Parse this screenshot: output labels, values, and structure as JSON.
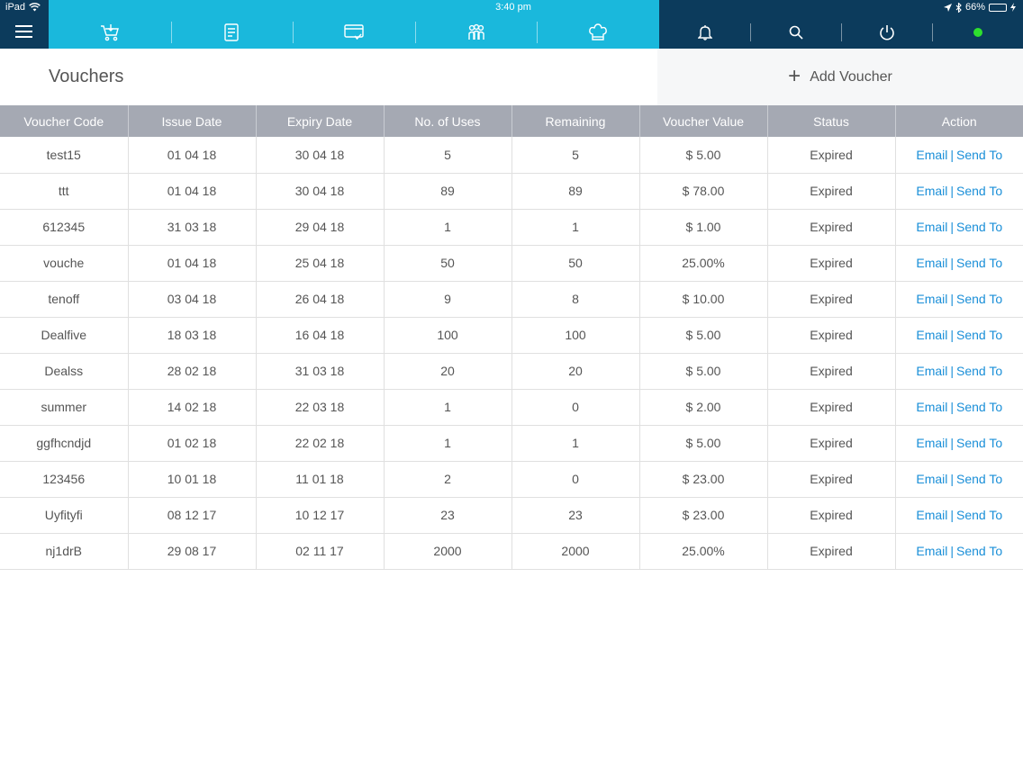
{
  "status_bar": {
    "device": "iPad",
    "time": "3:40 pm",
    "battery": "66%",
    "battery_level": 0.66
  },
  "nav": {
    "icons": [
      "cart-icon",
      "orders-icon",
      "payments-icon",
      "customers-icon",
      "chef-hat-icon"
    ],
    "right_icons": [
      "bell-icon",
      "search-icon",
      "power-icon",
      "online-status-icon"
    ],
    "online_color": "#2ee02e"
  },
  "header": {
    "title": "Vouchers",
    "add_label": "Add Voucher"
  },
  "table": {
    "columns": [
      "Voucher Code",
      "Issue Date",
      "Expiry Date",
      "No. of Uses",
      "Remaining",
      "Voucher Value",
      "Status",
      "Action"
    ],
    "action_email": "Email",
    "action_sep": "|",
    "action_send": "Send To",
    "rows": [
      [
        "test15",
        "01 04 18",
        "30 04 18",
        "5",
        "5",
        "$ 5.00",
        "Expired"
      ],
      [
        "ttt",
        "01 04 18",
        "30 04 18",
        "89",
        "89",
        "$ 78.00",
        "Expired"
      ],
      [
        "612345",
        "31 03 18",
        "29 04 18",
        "1",
        "1",
        "$ 1.00",
        "Expired"
      ],
      [
        "vouche",
        "01 04 18",
        "25 04 18",
        "50",
        "50",
        "25.00%",
        "Expired"
      ],
      [
        "tenoff",
        "03 04 18",
        "26 04 18",
        "9",
        "8",
        "$ 10.00",
        "Expired"
      ],
      [
        "Dealfive",
        "18 03 18",
        "16 04 18",
        "100",
        "100",
        "$ 5.00",
        "Expired"
      ],
      [
        "Dealss",
        "28 02 18",
        "31 03 18",
        "20",
        "20",
        "$ 5.00",
        "Expired"
      ],
      [
        "summer",
        "14 02 18",
        "22 03 18",
        "1",
        "0",
        "$ 2.00",
        "Expired"
      ],
      [
        "ggfhcndjd",
        "01 02 18",
        "22 02 18",
        "1",
        "1",
        "$ 5.00",
        "Expired"
      ],
      [
        "123456",
        "10 01 18",
        "11 01 18",
        "2",
        "0",
        "$ 23.00",
        "Expired"
      ],
      [
        "Uyfityfi",
        "08 12 17",
        "10 12 17",
        "23",
        "23",
        "$ 23.00",
        "Expired"
      ],
      [
        "nj1drB",
        "29 08 17",
        "02 11 17",
        "2000",
        "2000",
        "25.00%",
        "Expired"
      ]
    ]
  }
}
